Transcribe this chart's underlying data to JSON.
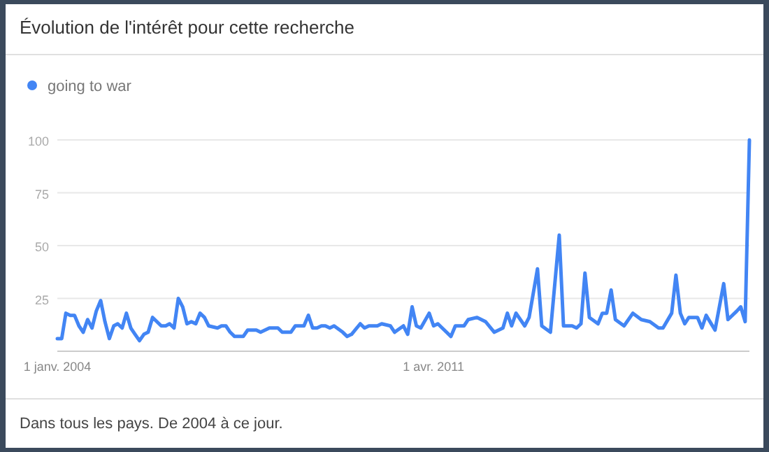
{
  "chart_data": {
    "type": "line",
    "title": "Évolution de l'intérêt pour cette recherche",
    "annotations": [
      "Dans tous les pays. De 2004 à ce jour."
    ],
    "x": [
      "2004-01",
      "2004-02",
      "2004-03",
      "2004-04",
      "2004-05",
      "2004-06",
      "2004-07",
      "2004-08",
      "2004-09",
      "2004-10",
      "2004-11",
      "2004-12",
      "2005-01",
      "2005-02",
      "2005-03",
      "2005-04",
      "2005-05",
      "2005-06",
      "2005-07",
      "2005-08",
      "2005-09",
      "2005-10",
      "2005-11",
      "2006-01",
      "2006-02",
      "2006-03",
      "2006-04",
      "2006-05",
      "2006-06",
      "2006-07",
      "2006-08",
      "2006-09",
      "2006-10",
      "2006-11",
      "2006-12",
      "2007-02",
      "2007-03",
      "2007-04",
      "2007-05",
      "2007-06",
      "2007-08",
      "2007-09",
      "2007-11",
      "2007-12",
      "2008-02",
      "2008-03",
      "2008-04",
      "2008-05",
      "2008-07",
      "2008-08",
      "2008-10",
      "2008-11",
      "2008-12",
      "2009-01",
      "2009-02",
      "2009-03",
      "2009-04",
      "2009-05",
      "2009-07",
      "2009-08",
      "2009-09",
      "2009-11",
      "2009-12",
      "2010-01",
      "2010-03",
      "2010-04",
      "2010-06",
      "2010-07",
      "2010-09",
      "2010-10",
      "2010-11",
      "2010-12",
      "2011-01",
      "2011-03",
      "2011-04",
      "2011-05",
      "2011-07",
      "2011-08",
      "2011-09",
      "2011-11",
      "2011-12",
      "2012-02",
      "2012-04",
      "2012-06",
      "2012-08",
      "2012-09",
      "2012-10",
      "2012-11",
      "2013-01",
      "2013-02",
      "2013-04",
      "2013-05",
      "2013-07",
      "2013-09",
      "2013-10",
      "2013-12",
      "2014-01",
      "2014-02",
      "2014-03",
      "2014-04",
      "2014-06",
      "2014-07",
      "2014-08",
      "2014-09",
      "2014-10",
      "2014-12",
      "2015-02",
      "2015-04",
      "2015-06",
      "2015-08",
      "2015-09",
      "2015-11",
      "2015-12",
      "2016-01",
      "2016-02",
      "2016-03",
      "2016-05",
      "2016-06",
      "2016-07",
      "2016-09",
      "2016-11",
      "2016-12",
      "2017-02",
      "2017-03",
      "2017-04",
      "2017-05"
    ],
    "series": [
      {
        "name": "going to war",
        "color": "#4285f4",
        "values": [
          6,
          6,
          18,
          17,
          17,
          12,
          9,
          15,
          11,
          19,
          24,
          14,
          6,
          12,
          13,
          11,
          18,
          11,
          8,
          5,
          8,
          9,
          16,
          12,
          12,
          13,
          11,
          25,
          21,
          13,
          14,
          13,
          18,
          16,
          12,
          11,
          12,
          12,
          9,
          7,
          7,
          10,
          10,
          9,
          11,
          11,
          11,
          9,
          9,
          12,
          12,
          17,
          11,
          11,
          12,
          12,
          11,
          12,
          9,
          7,
          8,
          13,
          11,
          12,
          12,
          13,
          12,
          9,
          12,
          8,
          21,
          12,
          11,
          18,
          12,
          13,
          9,
          7,
          12,
          12,
          15,
          16,
          14,
          9,
          11,
          18,
          12,
          18,
          12,
          16,
          39,
          12,
          9,
          55,
          12,
          12,
          11,
          13,
          37,
          16,
          13,
          18,
          18,
          29,
          15,
          12,
          18,
          15,
          14,
          11,
          11,
          18,
          36,
          18,
          13,
          16,
          16,
          11,
          17,
          10,
          32,
          15,
          19,
          21,
          14,
          100
        ]
      }
    ],
    "xlim": [
      "2004-01",
      "2017-05"
    ],
    "xticks": [
      {
        "value": "2004-01",
        "label": "1 janv. 2004"
      },
      {
        "value": "2011-04",
        "label": "1 avr. 2011"
      }
    ],
    "ylim": [
      0,
      100
    ],
    "yticks": [
      25,
      50,
      75,
      100
    ],
    "grid": "y",
    "legend": "top left",
    "marker": "none",
    "line_style": "solid"
  }
}
